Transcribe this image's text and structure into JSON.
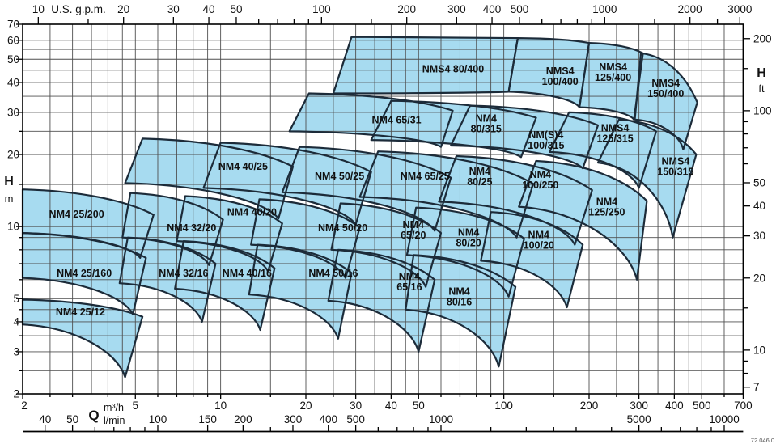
{
  "chart_data": {
    "type": "area",
    "title": "",
    "x_axis_top": {
      "title": "U.S. g.p.m.",
      "unit": "U.S. g.p.m.",
      "labeled_ticks": [
        10,
        20,
        30,
        40,
        50,
        100,
        200,
        300,
        400,
        500,
        1000,
        2000,
        3000
      ],
      "minor_ticks": [
        15,
        60,
        70,
        80,
        90,
        150,
        600,
        700,
        800,
        900,
        1500,
        2500
      ]
    },
    "x_axis_bottom_m3h": {
      "q_symbol": "Q",
      "unit": "m³/h",
      "labeled_ticks": [
        2,
        5,
        10,
        20,
        30,
        40,
        50,
        100,
        200,
        300,
        400,
        500,
        700
      ],
      "minor_ticks": [
        2.5,
        3,
        4,
        6,
        7,
        8,
        9,
        15,
        25,
        60,
        70,
        80,
        90,
        150,
        250,
        600
      ],
      "range": [
        2,
        700
      ]
    },
    "x_axis_bottom_lmin": {
      "unit": "l/min",
      "labeled_ticks": [
        40,
        50,
        100,
        150,
        200,
        300,
        400,
        500,
        1000,
        5000,
        10000
      ],
      "minor_ticks": [
        60,
        70,
        80,
        90,
        250,
        600,
        700,
        800,
        900,
        1500,
        2000,
        2500,
        3000,
        4000,
        6000,
        7000,
        8000,
        9000
      ]
    },
    "y_axis_left": {
      "title": "H",
      "unit": "m",
      "labeled_ticks": [
        70,
        60,
        50,
        40,
        30,
        20,
        10,
        5,
        4,
        3,
        2
      ],
      "minor_ticks": [
        25,
        15,
        9,
        8,
        7,
        6,
        4.5,
        3.5,
        2.5
      ],
      "range": [
        2,
        70
      ]
    },
    "y_axis_right": {
      "title": "H",
      "unit": "ft",
      "labeled_ticks": [
        200,
        100,
        50,
        40,
        30,
        20,
        10,
        7
      ],
      "minor_ticks": [
        150,
        90,
        80,
        70,
        60,
        15,
        9,
        8
      ]
    },
    "grid": {
      "q_lines": [
        2,
        2.5,
        3,
        3.5,
        4,
        4.5,
        5,
        6,
        7,
        8,
        9,
        10,
        15,
        20,
        25,
        30,
        35,
        40,
        45,
        50,
        60,
        70,
        80,
        90,
        100,
        150,
        200,
        250,
        300,
        350,
        400,
        450,
        500,
        600,
        700
      ],
      "h_lines": [
        2,
        2.5,
        3,
        3.5,
        4,
        4.5,
        5,
        6,
        7,
        8,
        9,
        10,
        15,
        20,
        25,
        30,
        35,
        40,
        45,
        50,
        55,
        60,
        65,
        70
      ]
    },
    "regions": [
      {
        "label": "NM4 25/12",
        "lines": [
          "NM4 25/12"
        ],
        "lq": 3.2,
        "lh": 4.4,
        "tl": [
          2,
          4.95
        ],
        "tr": [
          5.3,
          4.2
        ],
        "br": [
          4.6,
          2.35
        ],
        "bl": [
          2,
          3.9
        ]
      },
      {
        "label": "NM4 25/160",
        "lines": [
          "NM4 25/160"
        ],
        "lq": 3.3,
        "lh": 6.4,
        "tl": [
          2,
          9.4
        ],
        "tr": [
          5.45,
          7.4
        ],
        "br": [
          4.9,
          4.3
        ],
        "bl": [
          2,
          6.1
        ]
      },
      {
        "label": "NM4 25/200",
        "lines": [
          "NM4 25/200"
        ],
        "lq": 3.1,
        "lh": 11.3,
        "tl": [
          2,
          14.3
        ],
        "tr": [
          5.8,
          11.2
        ],
        "br": [
          5.2,
          7.4
        ],
        "bl": [
          2,
          9.4
        ]
      },
      {
        "label": "NM4 32/16",
        "lines": [
          "NM4 32/16"
        ],
        "lq": 7.4,
        "lh": 6.4,
        "tl": [
          4.7,
          9.0
        ],
        "tr": [
          9.6,
          7.0
        ],
        "br": [
          8.6,
          4.0
        ],
        "bl": [
          4.4,
          5.8
        ]
      },
      {
        "label": "NM4 32/20",
        "lines": [
          "NM4 32/20"
        ],
        "lq": 7.9,
        "lh": 9.9,
        "tl": [
          4.8,
          13.8
        ],
        "tr": [
          10.2,
          10.7
        ],
        "br": [
          9.1,
          6.9
        ],
        "bl": [
          4.5,
          9.0
        ]
      },
      {
        "label": "NM4 40/16",
        "lines": [
          "NM4 40/16"
        ],
        "lq": 12.4,
        "lh": 6.4,
        "tl": [
          7.4,
          8.7
        ],
        "tr": [
          15.5,
          6.7
        ],
        "br": [
          13.8,
          3.7
        ],
        "bl": [
          6.9,
          5.5
        ]
      },
      {
        "label": "NM4 40/20",
        "lines": [
          "NM4 40/20"
        ],
        "lq": 12.9,
        "lh": 11.5,
        "tl": [
          7.5,
          13.4
        ],
        "tr": [
          16.5,
          10.3
        ],
        "br": [
          14.7,
          6.5
        ],
        "bl": [
          7.0,
          8.7
        ]
      },
      {
        "label": "NM4 40/25",
        "lines": [
          "NM4 40/25"
        ],
        "lq": 12.0,
        "lh": 17.9,
        "tl": [
          5.3,
          23.3
        ],
        "tr": [
          18,
          17.8
        ],
        "br": [
          16,
          10.8
        ],
        "bl": [
          4.6,
          15.2
        ]
      },
      {
        "label": "NM4 50/16",
        "lines": [
          "NM4 50/16"
        ],
        "lq": 25,
        "lh": 6.4,
        "tl": [
          13.5,
          8.4
        ],
        "tr": [
          29,
          6.4
        ],
        "br": [
          26,
          3.4
        ],
        "bl": [
          12.6,
          5.2
        ]
      },
      {
        "label": "NM4 50/20",
        "lines": [
          "NM4 50/20"
        ],
        "lq": 27.0,
        "lh": 9.9,
        "tl": [
          13.7,
          13.0
        ],
        "tr": [
          31,
          9.9
        ],
        "br": [
          27.6,
          6.1
        ],
        "bl": [
          12.8,
          8.4
        ]
      },
      {
        "label": "NM4 50/25",
        "lines": [
          "NM4 50/25"
        ],
        "lq": 26.3,
        "lh": 16.3,
        "tl": [
          10,
          22.4
        ],
        "tr": [
          34,
          16.9
        ],
        "br": [
          30,
          10.2
        ],
        "bl": [
          8.7,
          14.5
        ]
      },
      {
        "label": "NM4 65/16",
        "lines": [
          "NM4",
          "65/16"
        ],
        "lq": 46.4,
        "lh": 5.9,
        "tl": [
          26,
          8.0
        ],
        "tr": [
          57,
          6.0
        ],
        "br": [
          50,
          3.0
        ],
        "bl": [
          24,
          4.9
        ]
      },
      {
        "label": "NM4 65/20",
        "lines": [
          "NM4",
          "65/20"
        ],
        "lq": 47.9,
        "lh": 9.7,
        "tl": [
          26.5,
          12.5
        ],
        "tr": [
          60,
          9.4
        ],
        "br": [
          53,
          5.6
        ],
        "bl": [
          24.6,
          8.0
        ]
      },
      {
        "label": "NM4 65/25",
        "lines": [
          "NM4 65/25"
        ],
        "lq": 52.7,
        "lh": 16.3,
        "tl": [
          19,
          21.5
        ],
        "tr": [
          65,
          16.0
        ],
        "br": [
          57,
          9.6
        ],
        "bl": [
          16.5,
          13.9
        ]
      },
      {
        "label": "NM4 65/31",
        "lines": [
          "NM4 65/31"
        ],
        "lq": 41.8,
        "lh": 28.0,
        "tl": [
          20.5,
          36
        ],
        "tr": [
          66,
          30.5
        ],
        "br": [
          60,
          21.5
        ],
        "bl": [
          17.5,
          25
        ]
      },
      {
        "label": "NM4 80/16",
        "lines": [
          "NM4",
          "80/16"
        ],
        "lq": 69.6,
        "lh": 5.1,
        "tl": [
          48,
          7.6
        ],
        "tr": [
          110,
          5.6
        ],
        "br": [
          96,
          2.6
        ],
        "bl": [
          45,
          4.5
        ]
      },
      {
        "label": "NM4 80/20",
        "lines": [
          "NM4",
          "80/20"
        ],
        "lq": 75.1,
        "lh": 9.0,
        "tl": [
          49,
          12.0
        ],
        "tr": [
          118,
          8.9
        ],
        "br": [
          104,
          5.1
        ],
        "bl": [
          45.5,
          7.6
        ]
      },
      {
        "label": "NM4 80/25",
        "lines": [
          "NM4",
          "80/25"
        ],
        "lq": 82.2,
        "lh": 16.2,
        "tl": [
          36,
          20.6
        ],
        "tr": [
          127,
          15.1
        ],
        "br": [
          111,
          9.0
        ],
        "bl": [
          31,
          13.3
        ]
      },
      {
        "label": "NM4 80/315",
        "lines": [
          "NM4",
          "80/315"
        ],
        "lq": 86.6,
        "lh": 27.0,
        "tl": [
          40,
          33.5
        ],
        "tr": [
          130,
          28.5
        ],
        "br": [
          115,
          19.5
        ],
        "bl": [
          34,
          23
        ]
      },
      {
        "label": "NM4 100/20",
        "lines": [
          "NM4",
          "100/20"
        ],
        "lq": 132.8,
        "lh": 8.8,
        "tl": [
          90,
          11.5
        ],
        "tr": [
          190,
          8.4
        ],
        "br": [
          167,
          4.6
        ],
        "bl": [
          83,
          7.2
        ]
      },
      {
        "label": "NM4 100/250",
        "lines": [
          "NM4",
          "100/250"
        ],
        "lq": 134.6,
        "lh": 15.7,
        "tl": [
          68,
          19.7
        ],
        "tr": [
          205,
          14.2
        ],
        "br": [
          178,
          8.4
        ],
        "bl": [
          59,
          12.7
        ]
      },
      {
        "label": "NM(S)4 100/315",
        "lines": [
          "NM(S)4",
          "100/315"
        ],
        "lq": 141,
        "lh": 23.0,
        "tl": [
          76,
          32
        ],
        "tr": [
          215,
          26.5
        ],
        "br": [
          190,
          17.5
        ],
        "bl": [
          65,
          21.8
        ]
      },
      {
        "label": "NM4 125/250",
        "lines": [
          "NM4",
          "125/250"
        ],
        "lq": 231,
        "lh": 12.1,
        "tl": [
          130,
          18.8
        ],
        "tr": [
          320,
          12.8
        ],
        "br": [
          295,
          6.0
        ],
        "bl": [
          113,
          12.1
        ]
      },
      {
        "label": "NMS4 125/315",
        "lines": [
          "NMS4",
          "125/315"
        ],
        "lq": 247,
        "lh": 24.6,
        "tl": [
          170,
          30
        ],
        "tr": [
          345,
          25
        ],
        "br": [
          300,
          14.5
        ],
        "bl": [
          145,
          20.5
        ]
      },
      {
        "label": "NMS4 150/315",
        "lines": [
          "NMS4",
          "150/315"
        ],
        "lq": 404,
        "lh": 17.9,
        "tl": [
          255,
          28
        ],
        "tr": [
          478,
          20
        ],
        "br": [
          395,
          9.0
        ],
        "bl": [
          215,
          18.5
        ]
      },
      {
        "label": "NMS4 80/400",
        "lines": [
          "NMS4 80/400"
        ],
        "lq": 66.2,
        "lh": 45.6,
        "tl": [
          29,
          62
        ],
        "tr": [
          112,
          61.3
        ],
        "br": [
          104,
          36.6
        ],
        "bl": [
          25,
          36
        ]
      },
      {
        "label": "NMS4 100/400",
        "lines": [
          "NMS4",
          "100/400"
        ],
        "lq": 158,
        "lh": 42.6,
        "tl": [
          112,
          61.3
        ],
        "tr": [
          200,
          58.5
        ],
        "br": [
          185,
          31.5
        ],
        "bl": [
          104,
          36.6
        ]
      },
      {
        "label": "NMS4 125/400",
        "lines": [
          "NMS4",
          "125/400"
        ],
        "lq": 243,
        "lh": 44.3,
        "tl": [
          200,
          58.5
        ],
        "tr": [
          310,
          53
        ],
        "br": [
          288,
          28
        ],
        "bl": [
          185,
          31.5
        ]
      },
      {
        "label": "NMS4 150/400",
        "lines": [
          "NMS4",
          "150/400"
        ],
        "lq": 373,
        "lh": 37.8,
        "tl": [
          305,
          53
        ],
        "tr": [
          482,
          33
        ],
        "br": [
          430,
          21
        ],
        "bl": [
          290,
          28
        ]
      }
    ],
    "colors": {
      "region_fill": "#a7dbf0",
      "region_stroke": "#1c2b39",
      "grid": "#4f4f4f",
      "frame": "#000000",
      "text": "#111111"
    },
    "legend_position": "none",
    "grid_on": true
  },
  "footnote_code": "72.046.0"
}
